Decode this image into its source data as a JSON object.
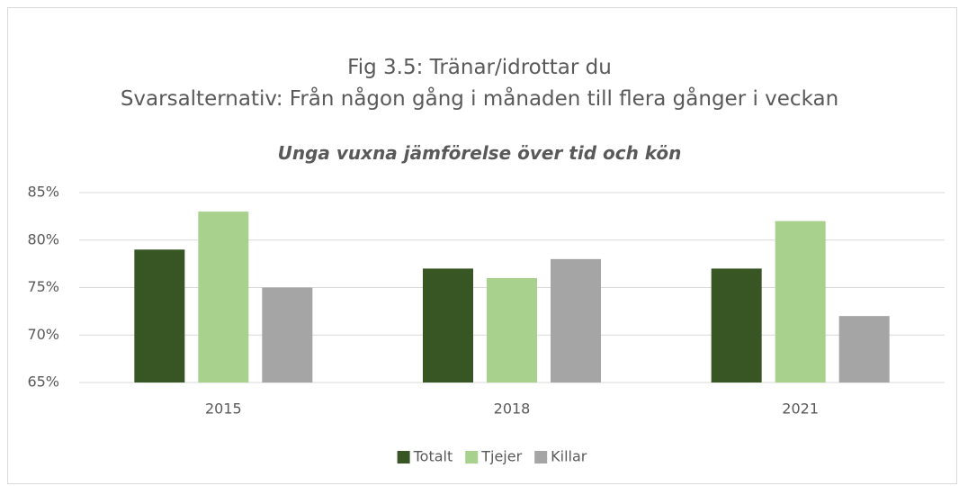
{
  "chart_data": {
    "type": "bar",
    "title": "Fig 3.5: Tränar/idrottar du",
    "subtitle": "Svarsalternativ: Från någon gång i månaden till flera gånger i veckan",
    "description": "Unga vuxna jämförelse över tid och kön",
    "categories": [
      "2015",
      "2018",
      "2021"
    ],
    "series": [
      {
        "name": "Totalt",
        "color": "#375623",
        "values": [
          79,
          77,
          77
        ]
      },
      {
        "name": "Tjejer",
        "color": "#a9d18e",
        "values": [
          83,
          76,
          82
        ]
      },
      {
        "name": "Killar",
        "color": "#a5a5a5",
        "values": [
          75,
          78,
          72
        ]
      }
    ],
    "ylim": [
      65,
      85
    ],
    "yticks": [
      {
        "value": 65,
        "label": "65%"
      },
      {
        "value": 70,
        "label": "70%"
      },
      {
        "value": 75,
        "label": "75%"
      },
      {
        "value": 80,
        "label": "80%"
      },
      {
        "value": 85,
        "label": "85%"
      }
    ],
    "grid": true,
    "legend": "bottom"
  }
}
